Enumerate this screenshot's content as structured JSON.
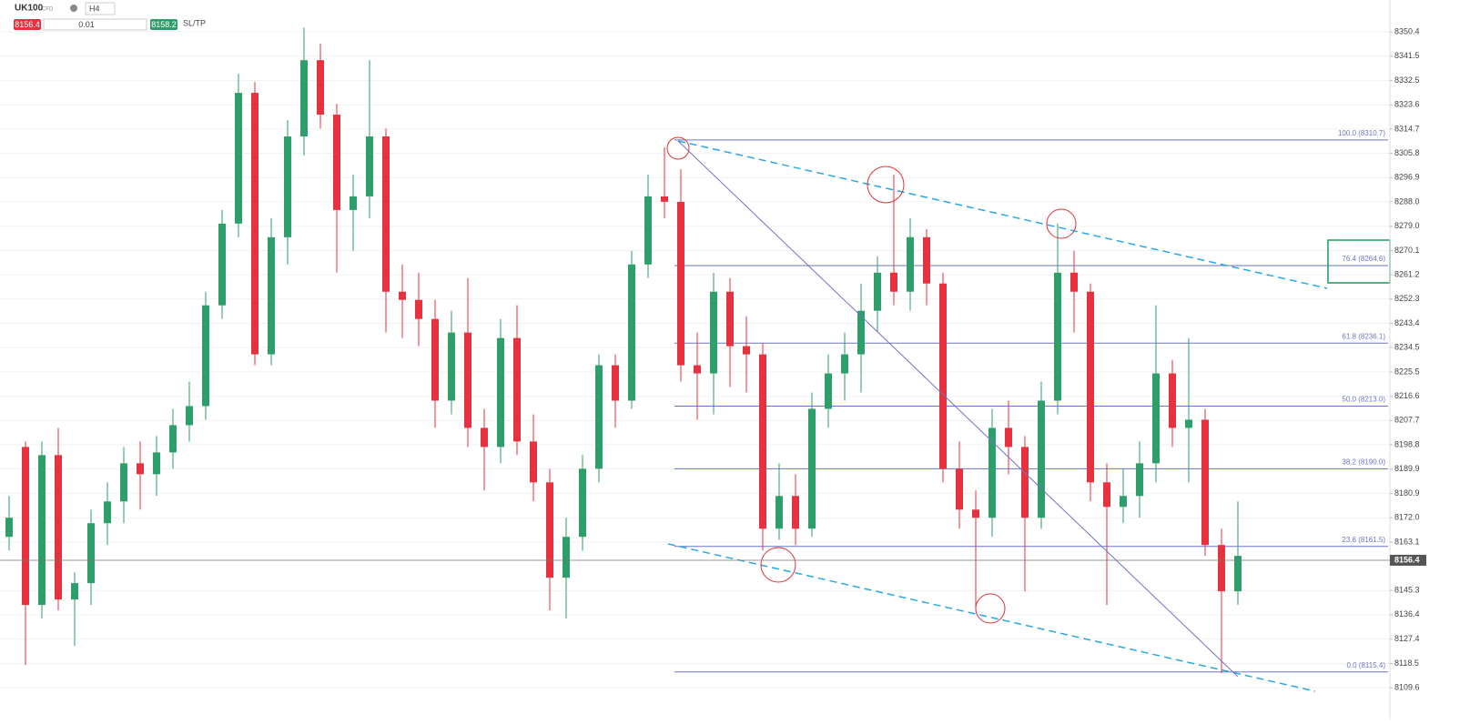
{
  "toolbar": {
    "symbol": "UK100",
    "tag": "CFD",
    "timeframe": "H4",
    "sell": "8156.4",
    "lot": "0.01",
    "buy": "8158.2",
    "sltp": "SL/TP"
  },
  "chart_data": {
    "type": "candlestick",
    "ylim": [
      8107.3,
      8362.1
    ],
    "yticks": [
      8350.4,
      8341.5,
      8332.5,
      8323.6,
      8314.7,
      8305.8,
      8296.9,
      {
        "value": 8288,
        "label": "8288.0"
      },
      {
        "value": 8279,
        "label": "8279.0"
      },
      8270.1,
      8261.2,
      8252.3,
      8243.4,
      8234.5,
      8225.5,
      8216.6,
      8207.7,
      8198.8,
      8189.9,
      8180.9,
      {
        "value": 8172,
        "label": "8172.0"
      },
      8163.1,
      8145.3,
      8136.4,
      8127.4,
      8118.5,
      8109.6
    ],
    "grid": true,
    "up_color": "#2e9e6a",
    "down_color": "#e5323e",
    "last_price": 8156.4,
    "fib_levels": [
      {
        "value": 8310.7,
        "label": "100.0 (8310.7)"
      },
      {
        "value": 8264.6,
        "label": "76.4 (8264.6)"
      },
      {
        "value": 8236.1,
        "label": "61.8 (8236.1)"
      },
      {
        "value": 8213.0,
        "label": "50.0 (8213.0)"
      },
      {
        "value": 8190.0,
        "label": "38.2 (8190.0)"
      },
      {
        "value": 8161.5,
        "label": "23.6 (8161.5)"
      },
      {
        "value": 8115.4,
        "label": "0.0 (8115.4)"
      }
    ],
    "ohlc": [
      [
        8165,
        8180,
        8160,
        8172
      ],
      [
        8198,
        8200,
        8118,
        8140
      ],
      [
        8140,
        8200,
        8135,
        8195
      ],
      [
        8195,
        8205,
        8138,
        8142
      ],
      [
        8142,
        8152,
        8125,
        8148
      ],
      [
        8148,
        8175,
        8140,
        8170
      ],
      [
        8170,
        8185,
        8162,
        8178
      ],
      [
        8178,
        8198,
        8170,
        8192
      ],
      [
        8192,
        8200,
        8175,
        8188
      ],
      [
        8188,
        8202,
        8180,
        8196
      ],
      [
        8196,
        8212,
        8190,
        8206
      ],
      [
        8206,
        8222,
        8200,
        8213
      ],
      [
        8213,
        8255,
        8208,
        8250
      ],
      [
        8250,
        8285,
        8245,
        8280
      ],
      [
        8280,
        8335,
        8275,
        8328
      ],
      [
        8328,
        8332,
        8228,
        8232
      ],
      [
        8232,
        8282,
        8228,
        8275
      ],
      [
        8275,
        8318,
        8265,
        8312
      ],
      [
        8312,
        8352,
        8305,
        8340
      ],
      [
        8340,
        8346,
        8315,
        8320
      ],
      [
        8320,
        8324,
        8262,
        8285
      ],
      [
        8285,
        8298,
        8270,
        8290
      ],
      [
        8290,
        8340,
        8282,
        8312
      ],
      [
        8312,
        8315,
        8240,
        8255
      ],
      [
        8255,
        8265,
        8238,
        8252
      ],
      [
        8252,
        8262,
        8235,
        8245
      ],
      [
        8245,
        8252,
        8205,
        8215
      ],
      [
        8215,
        8248,
        8210,
        8240
      ],
      [
        8240,
        8260,
        8198,
        8205
      ],
      [
        8205,
        8212,
        8182,
        8198
      ],
      [
        8198,
        8245,
        8192,
        8238
      ],
      [
        8238,
        8250,
        8195,
        8200
      ],
      [
        8200,
        8210,
        8178,
        8185
      ],
      [
        8185,
        8190,
        8138,
        8150
      ],
      [
        8150,
        8172,
        8135,
        8165
      ],
      [
        8165,
        8195,
        8160,
        8190
      ],
      [
        8190,
        8232,
        8185,
        8228
      ],
      [
        8228,
        8232,
        8205,
        8215
      ],
      [
        8215,
        8270,
        8212,
        8265
      ],
      [
        8265,
        8298,
        8260,
        8290
      ],
      [
        8290,
        8308,
        8282,
        8288
      ],
      [
        8288,
        8300,
        8222,
        8228
      ],
      [
        8228,
        8240,
        8208,
        8225
      ],
      [
        8225,
        8262,
        8210,
        8255
      ],
      [
        8255,
        8260,
        8220,
        8235
      ],
      [
        8235,
        8246,
        8218,
        8232
      ],
      [
        8232,
        8236,
        8160,
        8168
      ],
      [
        8168,
        8192,
        8164,
        8180
      ],
      [
        8180,
        8188,
        8162,
        8168
      ],
      [
        8168,
        8218,
        8165,
        8212
      ],
      [
        8212,
        8232,
        8205,
        8225
      ],
      [
        8225,
        8240,
        8215,
        8232
      ],
      [
        8232,
        8258,
        8218,
        8248
      ],
      [
        8248,
        8268,
        8240,
        8262
      ],
      [
        8262,
        8298,
        8250,
        8255
      ],
      [
        8255,
        8282,
        8248,
        8275
      ],
      [
        8275,
        8278,
        8250,
        8258
      ],
      [
        8258,
        8262,
        8185,
        8190
      ],
      [
        8190,
        8200,
        8168,
        8175
      ],
      [
        8175,
        8182,
        8138,
        8172
      ],
      [
        8172,
        8212,
        8165,
        8205
      ],
      [
        8205,
        8215,
        8188,
        8198
      ],
      [
        8198,
        8202,
        8145,
        8172
      ],
      [
        8172,
        8222,
        8168,
        8215
      ],
      [
        8215,
        8280,
        8210,
        8262
      ],
      [
        8262,
        8270,
        8240,
        8255
      ],
      [
        8255,
        8258,
        8178,
        8185
      ],
      [
        8185,
        8192,
        8140,
        8176
      ],
      [
        8176,
        8190,
        8170,
        8180
      ],
      [
        8180,
        8200,
        8172,
        8192
      ],
      [
        8192,
        8250,
        8185,
        8225
      ],
      [
        8225,
        8230,
        8198,
        8205
      ],
      [
        8205,
        8238,
        8185,
        8208
      ],
      [
        8208,
        8212,
        8158,
        8162
      ],
      [
        8162,
        8168,
        8115,
        8145
      ],
      [
        8145,
        8178,
        8140,
        8158
      ]
    ]
  }
}
